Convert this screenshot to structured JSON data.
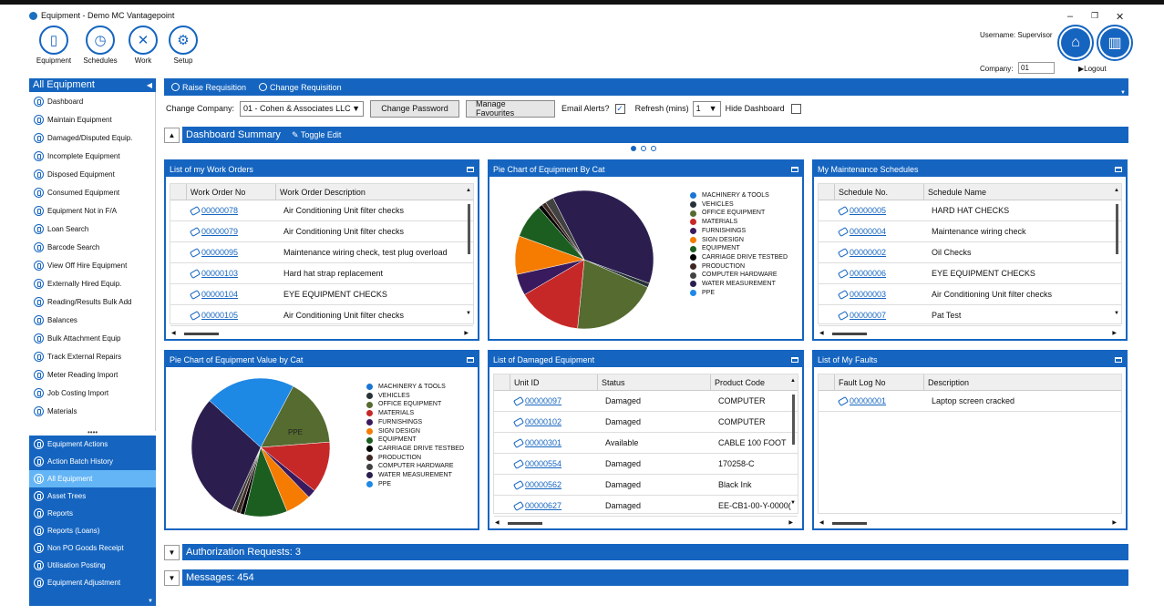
{
  "window": {
    "title": "Equipment - Demo MC Vantagepoint",
    "minimize": "–",
    "maximize": "❐",
    "close": "✕"
  },
  "toolbar": [
    {
      "label": "Equipment",
      "icon": "phone-icon"
    },
    {
      "label": "Schedules",
      "icon": "stopwatch-icon"
    },
    {
      "label": "Work",
      "icon": "tools-icon"
    },
    {
      "label": "Setup",
      "icon": "gears-icon"
    }
  ],
  "user": {
    "username_label": "Username: Supervisor",
    "company_label": "Company:",
    "company_value": "01",
    "logout": "Logout"
  },
  "sidebar": {
    "header": "All Equipment",
    "items": [
      "Dashboard",
      "Maintain Equipment",
      "Damaged/Disputed Equip.",
      "Incomplete Equipment",
      "Disposed Equipment",
      "Consumed Equipment",
      "Equipment Not in F/A",
      "Loan Search",
      "Barcode Search",
      "View Off Hire Equipment",
      "Externally Hired Equip.",
      "Reading/Results Bulk Add",
      "Balances",
      "Bulk Attachment Equip",
      "Track External Repairs",
      "Meter Reading Import",
      "Job Costing Import",
      "Materials"
    ],
    "bottom_items": [
      "Equipment Actions",
      "Action Batch History",
      "All Equipment",
      "Asset Trees",
      "Reports",
      "Reports (Loans)",
      "Non PO Goods Receipt",
      "Utilisation Posting",
      "Equipment Adjustment"
    ],
    "selected_bottom": "All Equipment"
  },
  "actions": {
    "raise": "Raise Requisition",
    "change": "Change Requisition"
  },
  "controls": {
    "change_company_label": "Change Company:",
    "company_selected": "01 - Cohen & Associates LLC",
    "change_password": "Change Password",
    "manage_favourites": "Manage Favourites",
    "email_alerts_label": "Email Alerts?",
    "email_alerts_checked": true,
    "refresh_label": "Refresh (mins)",
    "refresh_value": "1",
    "hide_dashboard_label": "Hide Dashboard",
    "hide_dashboard_checked": false
  },
  "dashboard": {
    "title": "Dashboard Summary",
    "toggle_edit": "Toggle Edit"
  },
  "work_orders": {
    "title": "List of my Work Orders",
    "columns": [
      "Work Order No",
      "Work Order Description"
    ],
    "rows": [
      [
        "00000078",
        "Air Conditioning Unit filter checks"
      ],
      [
        "00000079",
        "Air Conditioning Unit filter checks"
      ],
      [
        "00000095",
        "Maintenance wiring check, test plug overload"
      ],
      [
        "00000103",
        "Hard hat strap replacement"
      ],
      [
        "00000104",
        "EYE EQUIPMENT CHECKS"
      ],
      [
        "00000105",
        "Air Conditioning Unit filter checks"
      ]
    ]
  },
  "pie_cat": {
    "title": "Pie Chart of Equipment By Cat"
  },
  "schedules": {
    "title": "My Maintenance Schedules",
    "columns": [
      "Schedule No.",
      "Schedule Name"
    ],
    "rows": [
      [
        "00000005",
        "HARD HAT CHECKS"
      ],
      [
        "00000004",
        "Maintenance wiring check"
      ],
      [
        "00000002",
        "Oil Checks"
      ],
      [
        "00000006",
        "EYE EQUIPMENT CHECKS"
      ],
      [
        "00000003",
        "Air Conditioning Unit filter checks"
      ],
      [
        "00000007",
        "Pat Test"
      ]
    ]
  },
  "pie_value": {
    "title": "Pie Chart of Equipment Value by Cat",
    "slice_label": "PPE"
  },
  "damaged": {
    "title": "List of Damaged Equipment",
    "columns": [
      "Unit ID",
      "Status",
      "Product Code"
    ],
    "rows": [
      [
        "00000097",
        "Damaged",
        "COMPUTER"
      ],
      [
        "00000102",
        "Damaged",
        "COMPUTER"
      ],
      [
        "00000301",
        "Available",
        "CABLE 100 FOOT"
      ],
      [
        "00000554",
        "Damaged",
        "170258-C"
      ],
      [
        "00000562",
        "Damaged",
        "Black Ink"
      ],
      [
        "00000627",
        "Damaged",
        "EE-CB1-00-Y-0000("
      ]
    ]
  },
  "faults": {
    "title": "List of My Faults",
    "columns": [
      "Fault Log No",
      "Description"
    ],
    "rows": [
      [
        "00000001",
        "Laptop screen cracked"
      ]
    ]
  },
  "legend": [
    "MACHINERY & TOOLS",
    "VEHICLES",
    "OFFICE EQUIPMENT",
    "MATERIALS",
    "FURNISHINGS",
    "SIGN DESIGN",
    "EQUIPMENT",
    "CARRIAGE DRIVE TESTBED",
    "PRODUCTION",
    "COMPUTER HARDWARE",
    "WATER MEASUREMENT",
    "PPE"
  ],
  "legend_colors": [
    "#1976d2",
    "#263238",
    "#556b2f",
    "#c62828",
    "#3a1a5e",
    "#f57c00",
    "#1b5e20",
    "#000000",
    "#3e2723",
    "#424242",
    "#2b1e4f",
    "#1e88e5"
  ],
  "chart_data": [
    {
      "type": "pie",
      "title": "Pie Chart of Equipment By Cat",
      "labels": [
        "MACHINERY & TOOLS",
        "VEHICLES",
        "OFFICE EQUIPMENT",
        "MATERIALS",
        "FURNISHINGS",
        "SIGN DESIGN",
        "EQUIPMENT",
        "CARRIAGE DRIVE TESTBED",
        "PRODUCTION",
        "COMPUTER HARDWARE",
        "WATER MEASUREMENT",
        "PPE"
      ],
      "values": [
        0,
        1,
        20,
        15,
        5,
        9,
        8,
        1,
        1,
        2,
        38,
        0
      ],
      "legend": "right"
    },
    {
      "type": "pie",
      "title": "Pie Chart of Equipment Value by Cat",
      "labels": [
        "MACHINERY & TOOLS",
        "VEHICLES",
        "OFFICE EQUIPMENT",
        "MATERIALS",
        "FURNISHINGS",
        "SIGN DESIGN",
        "EQUIPMENT",
        "CARRIAGE DRIVE TESTBED",
        "PRODUCTION",
        "COMPUTER HARDWARE",
        "WATER MEASUREMENT",
        "PPE"
      ],
      "values": [
        0,
        0,
        16,
        12,
        2,
        6,
        10,
        1,
        1,
        1,
        30,
        21
      ],
      "legend": "right"
    }
  ],
  "bottom": {
    "auth": "Authorization Requests: 3",
    "messages": "Messages: 454"
  }
}
